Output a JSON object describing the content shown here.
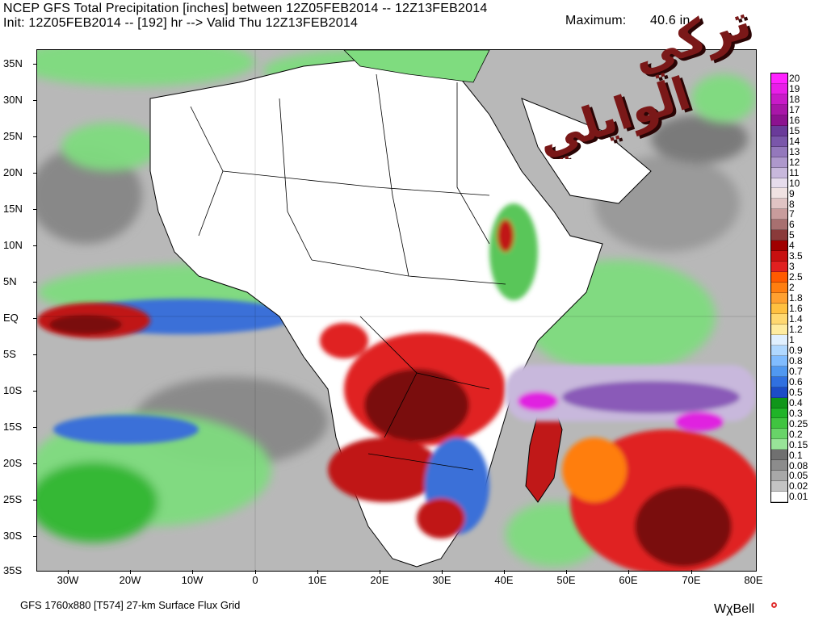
{
  "header": {
    "title": "NCEP GFS Total Precipitation [inches] between 12Z05FEB2014 -- 12Z13FEB2014",
    "init_line": "Init: 12Z05FEB2014 -- [192] hr --> Valid Thu 12Z13FEB2014",
    "max_label": "Maximum:",
    "max_value": "40.6 in."
  },
  "watermark": {
    "text_line1": "تركي",
    "text_line2": "الوايلي",
    "colors": {
      "primary": "#7a1818",
      "shadow": "#2a0505"
    }
  },
  "map": {
    "region": "Africa / Western Indian Ocean",
    "y_axis_labels": [
      "35N",
      "30N",
      "25N",
      "20N",
      "15N",
      "10N",
      "5N",
      "EQ",
      "5S",
      "10S",
      "15S",
      "20S",
      "25S",
      "30S",
      "35S"
    ],
    "x_axis_labels": [
      "30W",
      "20W",
      "10W",
      "0",
      "10E",
      "20E",
      "30E",
      "40E",
      "50E",
      "60E",
      "70E",
      "80E"
    ],
    "colors": {
      "ocean_background": "#b8b8b8",
      "land_dry": "#ffffff",
      "light_green": "#7fdc7f",
      "green": "#2eb82e",
      "blue": "#3a6fd8",
      "red": "#c01818",
      "dark_red": "#7a1010",
      "purple": "#8a5ab8",
      "magenta": "#e020e0"
    }
  },
  "legend": {
    "labels": [
      "20",
      "19",
      "18",
      "17",
      "16",
      "15",
      "14",
      "13",
      "12",
      "11",
      "10",
      "9",
      "8",
      "7",
      "6",
      "5",
      "4",
      "3.5",
      "3",
      "2.5",
      "2",
      "1.8",
      "1.6",
      "1.4",
      "1.2",
      "1",
      "0.9",
      "0.8",
      "0.7",
      "0.6",
      "0.5",
      "0.4",
      "0.3",
      "0.25",
      "0.2",
      "0.15",
      "0.1",
      "0.08",
      "0.05",
      "0.02",
      "0.01"
    ],
    "colors": [
      "#ff22ff",
      "#e81ee8",
      "#c81ac8",
      "#a816a8",
      "#8c1290",
      "#6a3a9a",
      "#7a56aa",
      "#9478bc",
      "#ae98cc",
      "#c8b8dc",
      "#e6dcec",
      "#f0e2e2",
      "#e0c4c4",
      "#c89c9c",
      "#a87070",
      "#8a3a3a",
      "#a00000",
      "#c81010",
      "#e02020",
      "#ff5a00",
      "#ff7e10",
      "#ffa030",
      "#ffc040",
      "#ffd870",
      "#ffeca0",
      "#e0f0ff",
      "#b0d8ff",
      "#80bcff",
      "#5098f0",
      "#3070e0",
      "#1c4cc8",
      "#10961a",
      "#20b428",
      "#40c440",
      "#68d468",
      "#98e498",
      "#707070",
      "#8c8c8c",
      "#a8a8a8",
      "#c4c4c4",
      "#ffffff"
    ]
  },
  "footer": {
    "model_info": "GFS 1760x880 [T574] 27-km Surface Flux Grid",
    "brand": "WχBell"
  }
}
